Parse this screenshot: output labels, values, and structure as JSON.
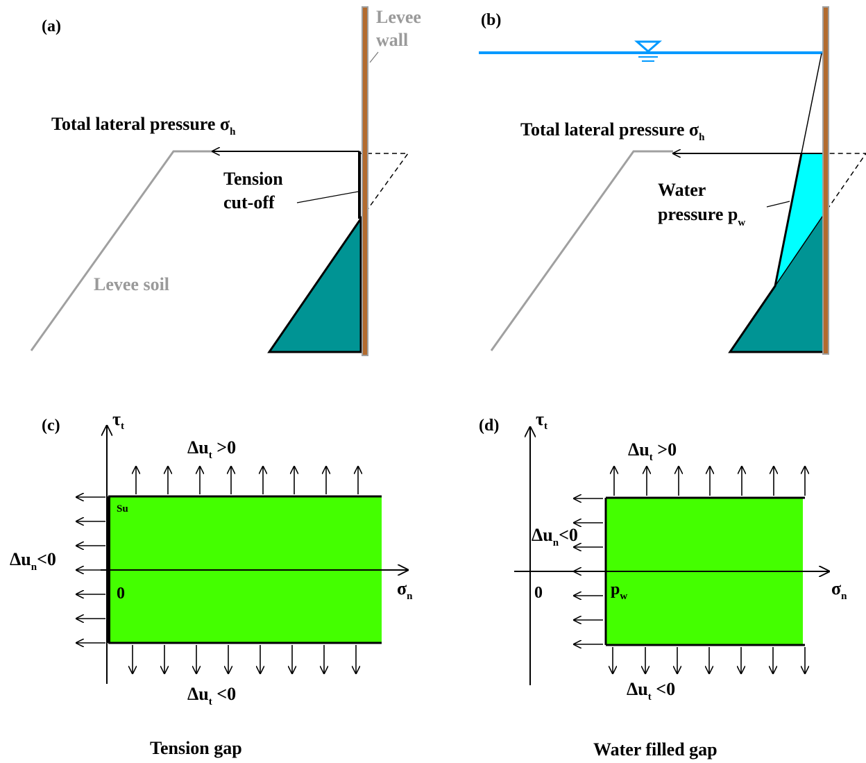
{
  "panel_a": {
    "label": "(a)",
    "wall_label_1": "Levee",
    "wall_label_2": "wall",
    "pressure_label": "Total lateral pressure",
    "sigma": "σ",
    "sigma_sub": "h",
    "tension_label_1": "Tension",
    "tension_label_2": "cut-off",
    "soil_label": "Levee soil"
  },
  "panel_b": {
    "label": "(b)",
    "pressure_label": "Total lateral pressure",
    "sigma": "σ",
    "sigma_sub": "h",
    "water_label_1": "Water",
    "water_label_2": "pressure p",
    "water_sub": "w"
  },
  "panel_c": {
    "label": "(c)",
    "tau": "τ",
    "tau_sub": "t",
    "du_top": "Δu",
    "du_top_sub": "t",
    "du_top_rel": " >0",
    "du_bottom": "Δu",
    "du_bottom_sub": "t",
    "du_bottom_rel": " <0",
    "du_left": "Δu",
    "du_left_sub": "n",
    "du_left_rel": "<0",
    "su_label": "Su",
    "origin": "0",
    "sigma": "σ",
    "sigma_sub": "n",
    "caption": "Tension gap"
  },
  "panel_d": {
    "label": "(d)",
    "tau": "τ",
    "tau_sub": "t",
    "du_top": "Δu",
    "du_top_sub": "t",
    "du_top_rel": " >0",
    "du_bottom": "Δu",
    "du_bottom_sub": "t",
    "du_bottom_rel": " <0",
    "du_left": "Δu",
    "du_left_sub": "n",
    "du_left_rel": "<0",
    "origin": "0",
    "pw": "p",
    "pw_sub": "w",
    "sigma": "σ",
    "sigma_sub": "n",
    "caption": "Water filled gap"
  },
  "colors": {
    "soil_pressure": "#009494",
    "water_pressure": "#00ffff",
    "envelope": "#44ff00",
    "water_line": "#0099ff",
    "wall": "#b36b2e",
    "wall_edge": "#a0a0a0",
    "levee_soil_line": "#a0a0a0"
  }
}
